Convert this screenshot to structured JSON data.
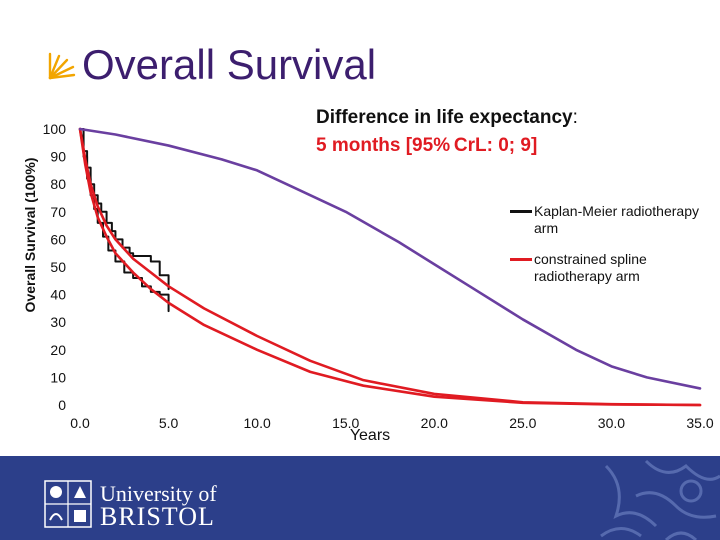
{
  "slide": {
    "title": "Overall Survival",
    "annotation_line1": "Difference in life expectancy",
    "annotation_colon": ":",
    "annotation_line2": "5 months [95% CrL: 0; 9]"
  },
  "footer": {
    "logo_line1": "University of",
    "logo_line2": "BRISTOL"
  },
  "colors": {
    "title": "#3c1e6e",
    "km": "#111111",
    "spline": "#e01b22",
    "extrapolation": "#6a3fa0",
    "footer_bg": "#2c3f8a"
  },
  "chart_data": {
    "type": "line",
    "title": "",
    "xlabel": "Years",
    "ylabel": "Overall Survival (100%)",
    "xlim": [
      0,
      35
    ],
    "ylim": [
      0,
      100
    ],
    "x_ticks": [
      0,
      5,
      10,
      15,
      20,
      25,
      30,
      35
    ],
    "x_tick_labels": [
      "0.0",
      "5.0",
      "10.0",
      "15.0",
      "20.0",
      "25.0",
      "30.0",
      "35.0"
    ],
    "y_ticks": [
      0,
      10,
      20,
      30,
      40,
      50,
      60,
      70,
      80,
      90,
      100
    ],
    "y_tick_labels": [
      "0",
      "10",
      "20",
      "30",
      "40",
      "50",
      "60",
      "70",
      "80",
      "90",
      "100"
    ],
    "grid": false,
    "legend_position": "right",
    "series": [
      {
        "name": "Kaplan-Meier radiotherapy arm",
        "style": "step",
        "color": "#111111",
        "x": [
          0,
          0.2,
          0.4,
          0.6,
          0.8,
          1.0,
          1.2,
          1.5,
          1.8,
          2.0,
          2.4,
          2.8,
          3.0,
          3.5,
          4.0,
          4.5,
          5.0
        ],
        "y": [
          100,
          92,
          86,
          80,
          76,
          73,
          70,
          66,
          63,
          60,
          57,
          55,
          54,
          54,
          52,
          47,
          42
        ]
      },
      {
        "name": "",
        "style": "step",
        "color": "#111111",
        "x": [
          0,
          0.2,
          0.4,
          0.6,
          0.8,
          1.0,
          1.3,
          1.6,
          2.0,
          2.5,
          3.0,
          3.5,
          4.0,
          4.5,
          5.0
        ],
        "y": [
          100,
          90,
          82,
          76,
          71,
          66,
          61,
          56,
          52,
          48,
          46,
          43,
          41,
          40,
          34
        ]
      },
      {
        "name": "constrained spline radiotherapy arm",
        "color": "#e01b22",
        "x": [
          0,
          0.3,
          0.6,
          1,
          1.5,
          2,
          3,
          4,
          5,
          7,
          10,
          13,
          16,
          20,
          25,
          30,
          35
        ],
        "y": [
          100,
          89,
          80,
          72,
          65,
          60,
          53,
          48,
          43,
          35,
          25,
          16,
          9,
          4,
          1,
          0.3,
          0
        ]
      },
      {
        "name": "",
        "color": "#e01b22",
        "x": [
          0,
          0.3,
          0.6,
          1,
          1.5,
          2,
          3,
          4,
          5,
          7,
          10,
          13,
          16,
          20,
          25,
          30,
          35
        ],
        "y": [
          100,
          87,
          77,
          68,
          61,
          55,
          48,
          42,
          37,
          29,
          20,
          12,
          7,
          3,
          0.8,
          0.2,
          0
        ]
      },
      {
        "name": "",
        "color": "#6a3fa0",
        "x": [
          0,
          2,
          5,
          8,
          10,
          12,
          15,
          18,
          20,
          22,
          25,
          28,
          30,
          32,
          35
        ],
        "y": [
          100,
          98,
          94,
          89,
          85,
          79,
          70,
          59,
          51,
          43,
          31,
          20,
          14,
          10,
          6
        ]
      }
    ]
  }
}
